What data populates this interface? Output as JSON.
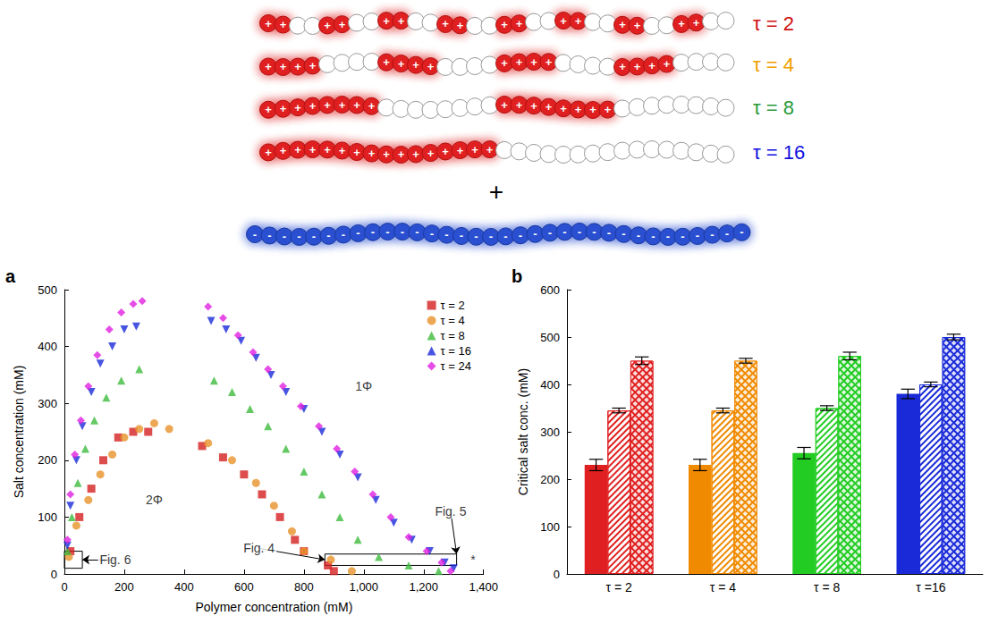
{
  "schematic": {
    "beads": 32,
    "cation_sign": "+",
    "bead_color": "#e02020",
    "chains": [
      {
        "label": "τ = 2",
        "tau": 2,
        "color": "#d01010"
      },
      {
        "label": "τ = 4",
        "tau": 4,
        "color": "#f0a000"
      },
      {
        "label": "τ = 8",
        "tau": 8,
        "color": "#2a9a3a"
      },
      {
        "label": "τ = 16",
        "tau": 16,
        "color": "#1010e0"
      }
    ],
    "plus": "+",
    "polyanion": {
      "beads": 34,
      "sign": "-",
      "color": "#2a4fd0"
    }
  },
  "chart_data": [
    {
      "panel": "a",
      "type": "scatter",
      "xlabel": "Polymer concentration (mM)",
      "ylabel": "Salt concentration (mM)",
      "xlim": [
        0,
        1400
      ],
      "xticks": [
        0,
        200,
        400,
        600,
        800,
        1000,
        1200,
        1400
      ],
      "ylim": [
        0,
        500
      ],
      "yticks": [
        0,
        100,
        200,
        300,
        400,
        500
      ],
      "grid": false,
      "legend": "upper right",
      "series": [
        {
          "name": "τ = 2",
          "color": "#d42020",
          "marker": "square",
          "x": [
            20,
            50,
            90,
            130,
            180,
            230,
            280,
            460,
            530,
            600,
            660,
            720,
            770,
            800,
            880,
            900
          ],
          "values": [
            40,
            100,
            150,
            200,
            240,
            250,
            250,
            225,
            205,
            175,
            140,
            100,
            60,
            40,
            15,
            5
          ]
        },
        {
          "name": "τ = 4",
          "color": "#e8922a",
          "marker": "circle",
          "x": [
            15,
            40,
            80,
            120,
            160,
            200,
            250,
            300,
            350,
            480,
            560,
            640,
            700,
            760,
            800,
            890,
            960
          ],
          "values": [
            30,
            85,
            130,
            175,
            210,
            240,
            255,
            265,
            255,
            230,
            200,
            160,
            120,
            75,
            40,
            25,
            5
          ]
        },
        {
          "name": "τ = 8",
          "color": "#3dbb3d",
          "marker": "triangle",
          "x": [
            10,
            25,
            45,
            70,
            100,
            140,
            190,
            250,
            500,
            560,
            620,
            680,
            740,
            800,
            860,
            920,
            980,
            1050,
            1150,
            1250
          ],
          "values": [
            40,
            100,
            160,
            220,
            270,
            310,
            340,
            360,
            340,
            320,
            290,
            260,
            220,
            180,
            140,
            100,
            60,
            30,
            15,
            5
          ]
        },
        {
          "name": "τ = 16",
          "color": "#1a2ad8",
          "marker": "inverted_triangle",
          "x": [
            10,
            20,
            40,
            60,
            90,
            120,
            160,
            200,
            240,
            490,
            540,
            590,
            640,
            690,
            740,
            800,
            860,
            920,
            980,
            1040,
            1100,
            1160,
            1220,
            1270,
            1300
          ],
          "values": [
            50,
            120,
            200,
            260,
            320,
            370,
            400,
            430,
            435,
            445,
            430,
            410,
            380,
            350,
            320,
            290,
            250,
            210,
            170,
            130,
            90,
            60,
            40,
            20,
            10
          ]
        },
        {
          "name": "τ = 24",
          "color": "#e020e0",
          "marker": "diamond",
          "x": [
            10,
            20,
            35,
            55,
            80,
            110,
            150,
            190,
            230,
            260,
            480,
            530,
            580,
            630,
            680,
            730,
            790,
            850,
            910,
            970,
            1030,
            1090,
            1150,
            1210,
            1260,
            1290
          ],
          "values": [
            60,
            140,
            210,
            270,
            330,
            385,
            430,
            460,
            475,
            480,
            470,
            450,
            420,
            390,
            360,
            330,
            295,
            260,
            220,
            180,
            140,
            100,
            65,
            40,
            20,
            5
          ]
        }
      ],
      "annotations": [
        {
          "text": "1Φ",
          "x": 1000,
          "y": 330
        },
        {
          "text": "2Φ",
          "x": 300,
          "y": 130
        },
        {
          "text": "Fig. 6",
          "x": 170,
          "y": 25,
          "arrow_to": [
            60,
            25
          ]
        },
        {
          "text": "Fig. 4",
          "x": 650,
          "y": 45,
          "arrow_to": [
            870,
            25
          ]
        },
        {
          "text": "Fig. 5",
          "x": 1290,
          "y": 110,
          "arrow_to": [
            1310,
            35
          ]
        },
        {
          "text": "*",
          "x": 1365,
          "y": 25
        }
      ],
      "boxes": [
        {
          "x": [
            0,
            60
          ],
          "y": [
            10,
            40
          ]
        },
        {
          "x": [
            870,
            1310
          ],
          "y": [
            15,
            35
          ]
        }
      ]
    },
    {
      "panel": "b",
      "type": "bar",
      "ylabel": "Critical salt conc. (mM)",
      "categories": [
        "τ = 2",
        "τ = 4",
        "τ = 8",
        "τ =16"
      ],
      "ylim": [
        0,
        600
      ],
      "yticks": [
        0,
        100,
        200,
        300,
        400,
        500,
        600
      ],
      "grid": false,
      "series": [
        {
          "marker": "solid",
          "colors": [
            "#e02020",
            "#f08a00",
            "#22cc22",
            "#1a2ad8"
          ],
          "values": [
            230,
            230,
            255,
            380
          ],
          "errors": [
            12,
            12,
            12,
            10
          ]
        },
        {
          "marker": "hatched",
          "colors": [
            "#e02020",
            "#f08a00",
            "#22cc22",
            "#1a2ad8"
          ],
          "values": [
            345,
            345,
            350,
            400
          ],
          "errors": [
            5,
            5,
            5,
            5
          ]
        },
        {
          "marker": "crosshatched",
          "colors": [
            "#e02020",
            "#f08a00",
            "#22cc22",
            "#1a2ad8"
          ],
          "values": [
            450,
            450,
            460,
            500
          ],
          "errors": [
            8,
            5,
            8,
            6
          ]
        }
      ]
    }
  ]
}
